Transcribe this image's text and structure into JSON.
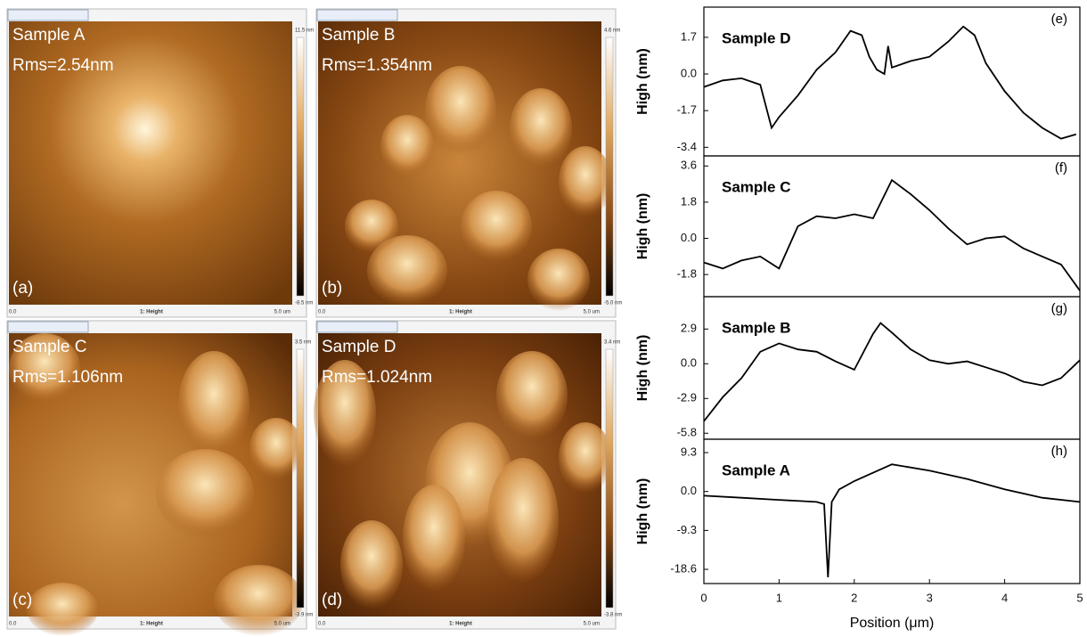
{
  "afm_images": [
    {
      "sample": "Sample A",
      "rms": "Rms=2.54nm",
      "panel": "(a)",
      "cbar_max": "11.5 nm",
      "cbar_min": "-8.5 nm",
      "x_start": "0.0",
      "channel": "1: Height",
      "x_end": "5.0  um"
    },
    {
      "sample": "Sample B",
      "rms": "Rms=1.354nm",
      "panel": "(b)",
      "cbar_max": "4.6 nm",
      "cbar_min": "-5.0 nm",
      "x_start": "0.0",
      "channel": "1: Height",
      "x_end": "5.0  um"
    },
    {
      "sample": "Sample C",
      "rms": "Rms=1.106nm",
      "panel": "(c)",
      "cbar_max": "3.5 nm",
      "cbar_min": "-3.9 nm",
      "x_start": "0.0",
      "channel": "1: Height",
      "x_end": "5.0  um"
    },
    {
      "sample": "Sample D",
      "rms": "Rms=1.024nm",
      "panel": "(d)",
      "cbar_max": "3.4 nm",
      "cbar_min": "-3.8 nm",
      "x_start": "0.0",
      "channel": "1: Height",
      "x_end": "5.0  um"
    }
  ],
  "chart_data": [
    {
      "type": "line",
      "title": "Sample D",
      "panel": "(e)",
      "ylabel": "High (nm)",
      "color": "#000000",
      "x": [
        0,
        0.25,
        0.5,
        0.75,
        0.9,
        1.0,
        1.25,
        1.5,
        1.75,
        1.95,
        2.1,
        2.2,
        2.3,
        2.4,
        2.45,
        2.5,
        2.75,
        3.0,
        3.25,
        3.45,
        3.6,
        3.75,
        4.0,
        4.25,
        4.5,
        4.75,
        4.95
      ],
      "values": [
        -0.6,
        -0.3,
        -0.2,
        -0.5,
        -2.5,
        -2.0,
        -1.0,
        0.2,
        1.0,
        2.0,
        1.8,
        0.8,
        0.2,
        0.0,
        1.3,
        0.3,
        0.6,
        0.8,
        1.5,
        2.2,
        1.8,
        0.5,
        -0.8,
        -1.8,
        -2.5,
        -3.0,
        -2.8
      ],
      "xlim": [
        0,
        5
      ],
      "ylim": [
        -3.8,
        3.1
      ],
      "yticks": [
        -3.4,
        -1.7,
        {
          "value": 0,
          "label": "0.0"
        },
        1.7
      ]
    },
    {
      "type": "line",
      "title": "Sample C",
      "panel": "(f)",
      "ylabel": "High (nm)",
      "color": "#000000",
      "x": [
        0,
        0.25,
        0.5,
        0.75,
        1.0,
        1.25,
        1.5,
        1.75,
        2.0,
        2.25,
        2.5,
        2.75,
        3.0,
        3.25,
        3.5,
        3.75,
        4.0,
        4.25,
        4.5,
        4.75,
        5.0
      ],
      "values": [
        -1.2,
        -1.5,
        -1.1,
        -0.9,
        -1.5,
        0.6,
        1.1,
        1.0,
        1.2,
        1.0,
        2.9,
        2.2,
        1.4,
        0.5,
        -0.3,
        0.0,
        0.1,
        -0.5,
        -0.9,
        -1.3,
        -2.6
      ],
      "xlim": [
        0,
        5
      ],
      "ylim": [
        -2.9,
        4.1
      ],
      "yticks": [
        -1.8,
        {
          "value": 0,
          "label": "0.0"
        },
        1.8,
        3.6
      ]
    },
    {
      "type": "line",
      "title": "Sample B",
      "panel": "(g)",
      "ylabel": "High (nm)",
      "color": "#000000",
      "x": [
        0,
        0.25,
        0.5,
        0.75,
        1.0,
        1.25,
        1.5,
        1.75,
        2.0,
        2.25,
        2.35,
        2.5,
        2.75,
        3.0,
        3.25,
        3.5,
        3.75,
        4.0,
        4.25,
        4.5,
        4.75,
        5.0
      ],
      "values": [
        -4.8,
        -2.8,
        -1.2,
        1.0,
        1.7,
        1.2,
        1.0,
        0.2,
        -0.5,
        2.5,
        3.4,
        2.6,
        1.2,
        0.3,
        0.0,
        0.2,
        -0.3,
        -0.8,
        -1.5,
        -1.8,
        -1.2,
        0.3
      ],
      "xlim": [
        0,
        5
      ],
      "ylim": [
        -6.3,
        5.6
      ],
      "yticks": [
        -5.8,
        -2.9,
        {
          "value": 0,
          "label": "0.0"
        },
        2.9
      ]
    },
    {
      "type": "line",
      "title": "Sample A",
      "panel": "(h)",
      "ylabel": "High (nm)",
      "color": "#000000",
      "xlabel": "Position (μm)",
      "x": [
        0,
        0.5,
        1.0,
        1.5,
        1.6,
        1.65,
        1.7,
        1.8,
        2.0,
        2.5,
        3.0,
        3.5,
        4.0,
        4.5,
        5.0
      ],
      "values": [
        -1.0,
        -1.5,
        -2.0,
        -2.5,
        -3.0,
        -20.5,
        -2.5,
        0.5,
        2.5,
        6.5,
        5.0,
        3.0,
        0.5,
        -1.5,
        -2.5
      ],
      "xlim": [
        0,
        5
      ],
      "xticks": [
        0,
        1,
        2,
        3,
        4,
        5
      ],
      "ylim": [
        -22,
        12.5
      ],
      "yticks": [
        -18.6,
        -9.3,
        {
          "value": 0,
          "label": "0.0"
        },
        9.3
      ]
    }
  ]
}
